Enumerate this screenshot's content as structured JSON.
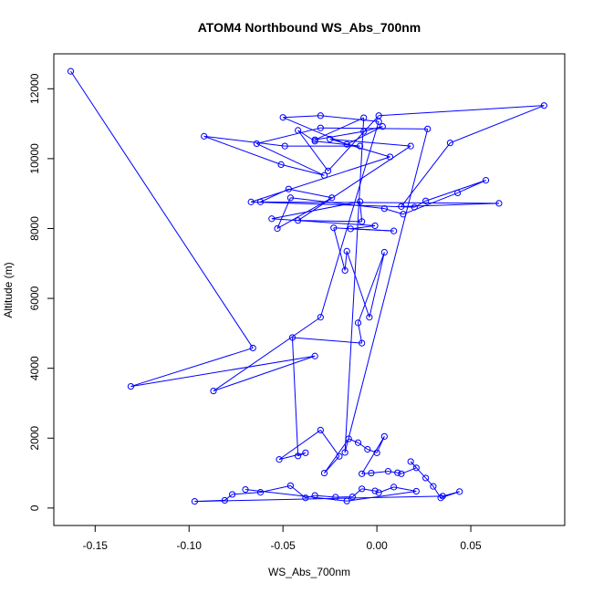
{
  "chart_data": {
    "type": "line",
    "title": "ATOM4 Northbound WS_Abs_700nm",
    "xlabel": "WS_Abs_700nm",
    "ylabel": "Altitude (m)",
    "xlim": [
      -0.172,
      0.1
    ],
    "ylim": [
      -500,
      13000
    ],
    "xticks": [
      -0.15,
      -0.1,
      -0.05,
      0.0,
      0.05
    ],
    "xtick_labels": [
      "-0.15",
      "-0.10",
      "-0.05",
      "0.00",
      "0.05"
    ],
    "yticks": [
      0,
      2000,
      4000,
      6000,
      8000,
      10000,
      12000
    ],
    "ytick_labels": [
      "0",
      "2000",
      "4000",
      "6000",
      "8000",
      "10000",
      "12000"
    ],
    "grid": false,
    "series_color": "#0000ff",
    "marker": "open-circle",
    "points": [
      [
        -0.163,
        12500
      ],
      [
        -0.066,
        4580
      ],
      [
        -0.131,
        3480
      ],
      [
        -0.033,
        4350
      ],
      [
        -0.087,
        3350
      ],
      [
        -0.03,
        5460
      ],
      [
        0.001,
        11060
      ],
      [
        -0.03,
        11230
      ],
      [
        -0.05,
        11180
      ],
      [
        -0.016,
        10410
      ],
      [
        0.003,
        10920
      ],
      [
        -0.007,
        10780
      ],
      [
        -0.033,
        10540
      ],
      [
        -0.007,
        11170
      ],
      [
        -0.017,
        1590
      ],
      [
        0.027,
        10850
      ],
      [
        -0.03,
        10880
      ],
      [
        -0.064,
        10430
      ],
      [
        -0.028,
        9520
      ],
      [
        -0.051,
        9830
      ],
      [
        -0.092,
        10640
      ],
      [
        -0.049,
        10360
      ],
      [
        -0.009,
        10360
      ],
      [
        -0.033,
        10500
      ],
      [
        -0.042,
        10810
      ],
      [
        -0.026,
        9650
      ],
      [
        0.001,
        11230
      ],
      [
        0.089,
        11520
      ],
      [
        0.039,
        10450
      ],
      [
        0.013,
        8630
      ],
      [
        0.065,
        8720
      ],
      [
        -0.062,
        8760
      ],
      [
        -0.047,
        9130
      ],
      [
        -0.024,
        8880
      ],
      [
        -0.053,
        8000
      ],
      [
        -0.046,
        8880
      ],
      [
        0.004,
        8570
      ],
      [
        0.014,
        8410
      ],
      [
        0.043,
        9020
      ],
      [
        0.058,
        9380
      ],
      [
        0.026,
        8790
      ],
      [
        0.02,
        8610
      ],
      [
        -0.067,
        8760
      ],
      [
        0.007,
        10050
      ],
      [
        -0.025,
        10560
      ],
      [
        0.018,
        10360
      ],
      [
        -0.042,
        8230
      ],
      [
        -0.008,
        8200
      ],
      [
        -0.009,
        8770
      ],
      [
        -0.056,
        8280
      ],
      [
        -0.001,
        8080
      ],
      [
        -0.014,
        7990
      ],
      [
        0.009,
        7930
      ],
      [
        -0.023,
        8020
      ],
      [
        -0.017,
        6800
      ],
      [
        -0.016,
        7350
      ],
      [
        -0.004,
        5460
      ],
      [
        0.004,
        7320
      ],
      [
        -0.01,
        5300
      ],
      [
        -0.008,
        4720
      ],
      [
        -0.045,
        4880
      ],
      [
        -0.042,
        1490
      ],
      [
        -0.038,
        1580
      ],
      [
        -0.052,
        1390
      ],
      [
        -0.03,
        2230
      ],
      [
        -0.02,
        1480
      ],
      [
        -0.028,
        1000
      ],
      [
        -0.015,
        1980
      ],
      [
        -0.01,
        1870
      ],
      [
        -0.005,
        1680
      ],
      [
        0.0,
        1580
      ],
      [
        0.004,
        2050
      ],
      [
        -0.008,
        980
      ],
      [
        -0.003,
        1000
      ],
      [
        0.006,
        1050
      ],
      [
        0.011,
        1010
      ],
      [
        0.013,
        980
      ],
      [
        0.021,
        1150
      ],
      [
        0.018,
        1330
      ],
      [
        0.026,
        860
      ],
      [
        0.03,
        620
      ],
      [
        0.034,
        290
      ],
      [
        0.044,
        470
      ],
      [
        0.035,
        340
      ],
      [
        -0.097,
        190
      ],
      [
        -0.081,
        220
      ],
      [
        -0.077,
        390
      ],
      [
        -0.062,
        450
      ],
      [
        -0.046,
        640
      ],
      [
        -0.038,
        290
      ],
      [
        -0.033,
        360
      ],
      [
        -0.022,
        310
      ],
      [
        -0.013,
        320
      ],
      [
        -0.008,
        550
      ],
      [
        -0.001,
        490
      ],
      [
        0.001,
        440
      ],
      [
        0.009,
        600
      ],
      [
        0.021,
        480
      ],
      [
        -0.016,
        200
      ],
      [
        -0.07,
        530
      ]
    ]
  }
}
